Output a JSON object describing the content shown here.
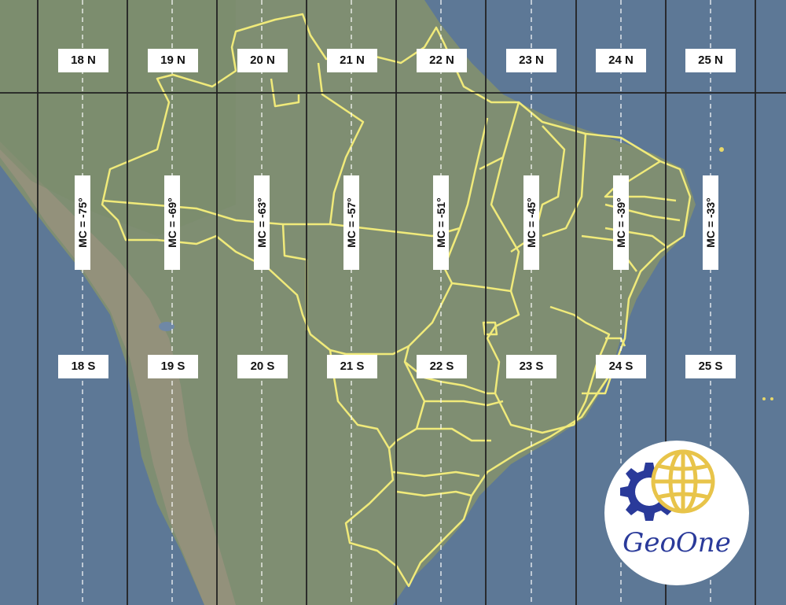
{
  "map": {
    "colors": {
      "ocean": "#5d7896",
      "land": "#7f8e72",
      "andes": "#9a917f",
      "state_border": "#f0ea7a",
      "zone_line": "#222222",
      "central_meridian": "#ffffff"
    },
    "zones": [
      {
        "north_label": "18 N",
        "south_label": "18 S",
        "meridian_label": "MC = -75°"
      },
      {
        "north_label": "19 N",
        "south_label": "19 S",
        "meridian_label": "MC = -69°"
      },
      {
        "north_label": "20 N",
        "south_label": "20 S",
        "meridian_label": "MC = -63°"
      },
      {
        "north_label": "21 N",
        "south_label": "21 S",
        "meridian_label": "MC = -57°"
      },
      {
        "north_label": "22 N",
        "south_label": "22 S",
        "meridian_label": "MC = -51°"
      },
      {
        "north_label": "23 N",
        "south_label": "23 S",
        "meridian_label": "MC = -45°"
      },
      {
        "north_label": "24 N",
        "south_label": "24 S",
        "meridian_label": "MC = -39°"
      },
      {
        "north_label": "25 N",
        "south_label": "25 S",
        "meridian_label": "MC = -33°"
      }
    ],
    "logo": {
      "text": "GeoOne",
      "icon": "gear-globe-icon",
      "gear_color": "#2a3a9a",
      "globe_color": "#e8c44a"
    }
  }
}
